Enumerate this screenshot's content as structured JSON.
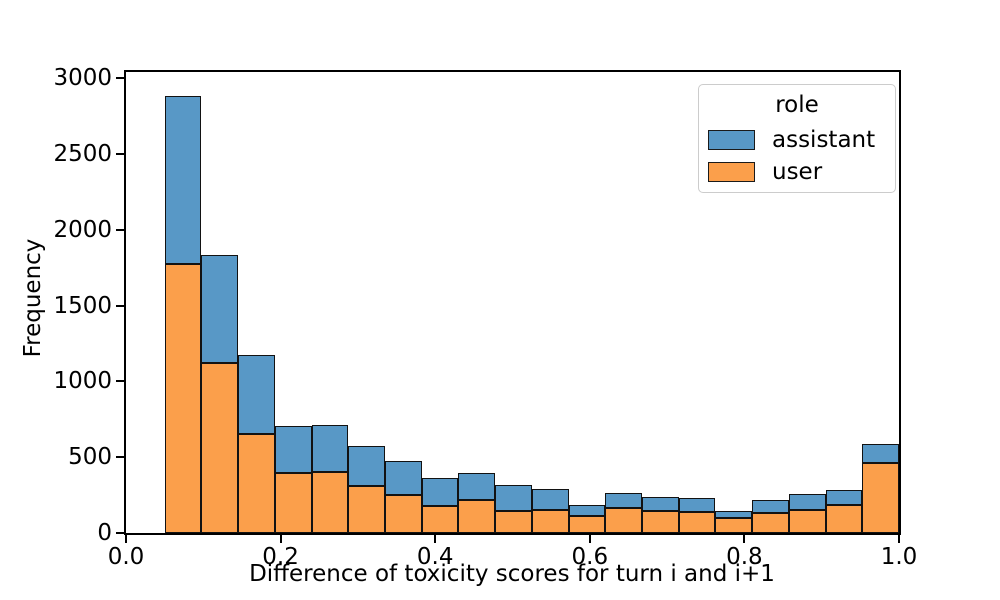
{
  "figure": {
    "background": "#ffffff",
    "xlabel": "Difference of toxicity scores for turn i and i+1",
    "ylabel": "Frequency"
  },
  "legend": {
    "title": "role",
    "position": "upper right",
    "items": [
      {
        "label": "assistant",
        "color": "#5898c6"
      },
      {
        "label": "user",
        "color": "#fb9f4b"
      }
    ]
  },
  "chart_data": {
    "type": "bar",
    "subtype": "stacked-histogram",
    "title": "",
    "xlabel": "Difference of toxicity scores for turn i and i+1",
    "ylabel": "Frequency",
    "xlim": [
      0.0,
      1.0
    ],
    "ylim": [
      0,
      3040
    ],
    "grid": false,
    "legend_position": "upper right",
    "edge_color": "#121212",
    "xticks": {
      "values": [
        0.0,
        0.2,
        0.4,
        0.6,
        0.8,
        1.0
      ],
      "labels": [
        "0.0",
        "0.2",
        "0.4",
        "0.6",
        "0.8",
        "1.0"
      ]
    },
    "yticks": {
      "values": [
        0,
        500,
        1000,
        1500,
        2000,
        2500,
        3000
      ],
      "labels": [
        "0",
        "500",
        "1000",
        "1500",
        "2000",
        "2500",
        "3000"
      ]
    },
    "bin_edges": [
      0.05,
      0.0975,
      0.145,
      0.1925,
      0.24,
      0.2875,
      0.335,
      0.3825,
      0.43,
      0.4775,
      0.525,
      0.5725,
      0.62,
      0.6675,
      0.715,
      0.7625,
      0.81,
      0.8575,
      0.905,
      0.9525,
      1.0
    ],
    "stack_order_bottom_to_top": [
      "user",
      "assistant"
    ],
    "series": [
      {
        "name": "user",
        "color": "#fb9f4b",
        "values": [
          1775,
          1120,
          650,
          395,
          405,
          310,
          250,
          177,
          217,
          146,
          149,
          113,
          163,
          146,
          141,
          100,
          132,
          152,
          182,
          462
        ]
      },
      {
        "name": "assistant",
        "color": "#5898c6",
        "values": [
          1105,
          710,
          525,
          310,
          305,
          265,
          225,
          188,
          176,
          168,
          141,
          74,
          103,
          91,
          92,
          42,
          84,
          103,
          100,
          127
        ]
      }
    ],
    "stacked_totals": [
      2880,
      1830,
      1175,
      705,
      710,
      575,
      475,
      365,
      393,
      314,
      290,
      187,
      266,
      237,
      233,
      142,
      216,
      255,
      282,
      589
    ]
  }
}
